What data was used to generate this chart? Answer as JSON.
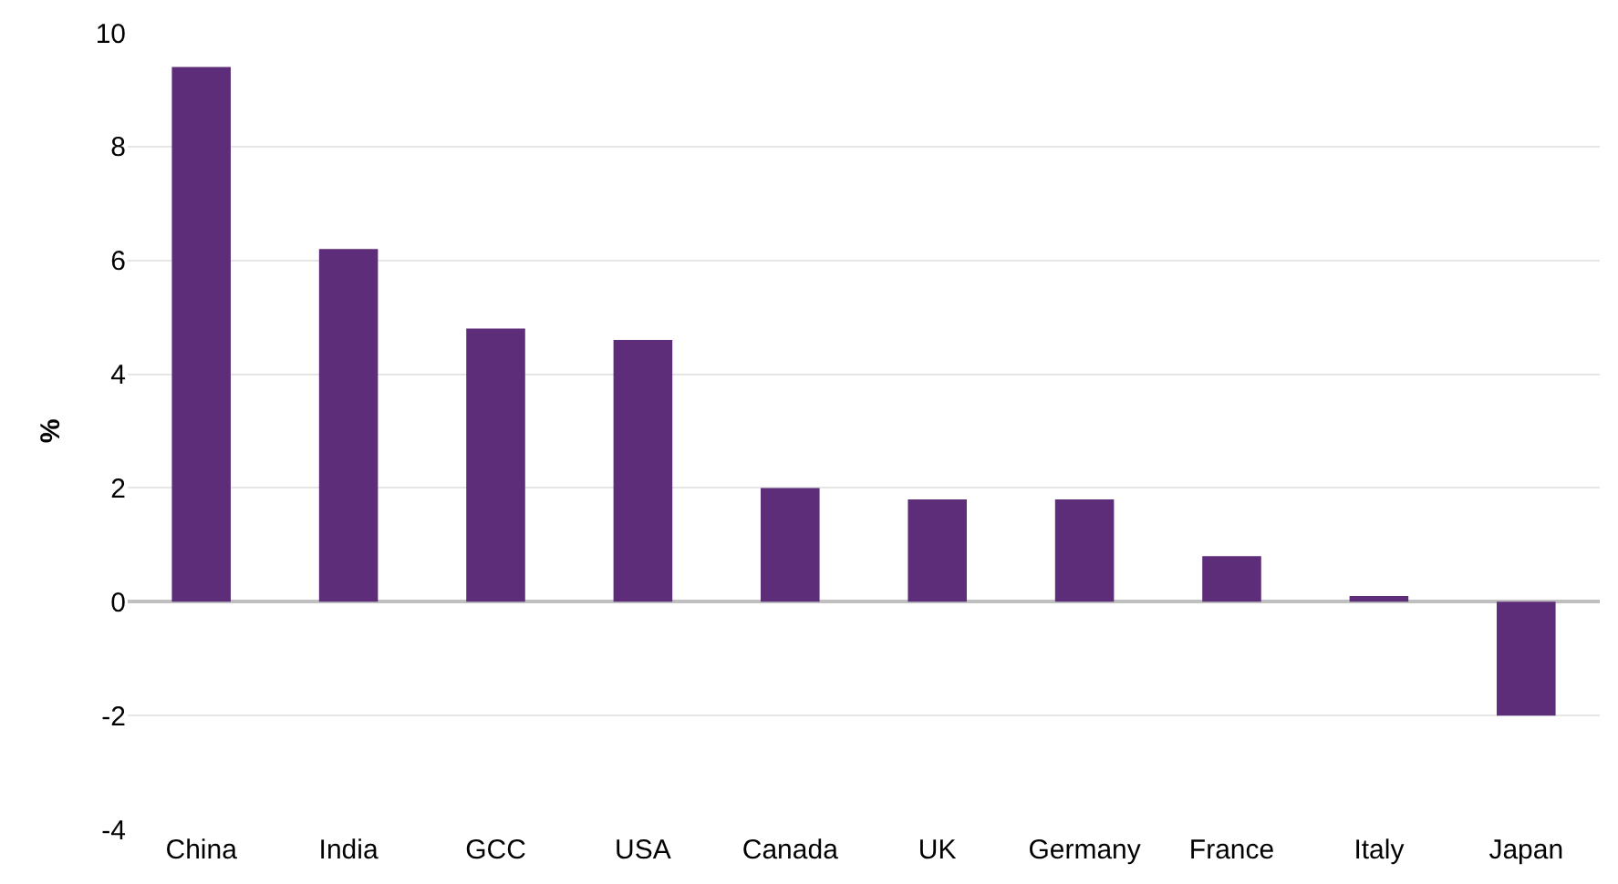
{
  "chart_data": {
    "type": "bar",
    "ylabel": "%",
    "categories": [
      "China",
      "India",
      "GCC",
      "USA",
      "Canada",
      "UK",
      "Germany",
      "France",
      "Italy",
      "Japan"
    ],
    "values": [
      9.4,
      6.2,
      4.8,
      4.6,
      2.0,
      1.8,
      1.8,
      0.8,
      0.1,
      -2.0
    ],
    "color": "#5e2d7a",
    "ylim": [
      -4,
      10
    ],
    "yticks": [
      -4,
      -2,
      0,
      2,
      4,
      6,
      8,
      10
    ],
    "grid": "y"
  }
}
